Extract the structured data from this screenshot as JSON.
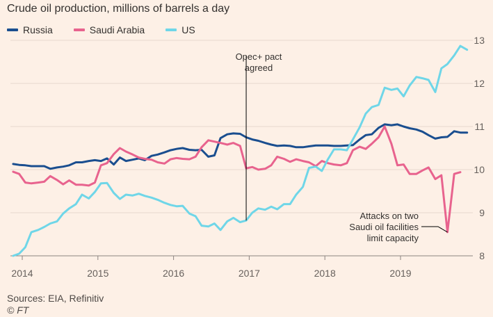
{
  "title": "Crude oil production, millions of barrels a day",
  "source": "Sources: EIA, Refinitiv",
  "credit": "© FT",
  "chart_data": {
    "type": "line",
    "title": "Crude oil production, millions of barrels a day",
    "xlabel": "",
    "ylabel": "",
    "xlim": [
      2013.88,
      2019.9
    ],
    "ylim": [
      8,
      13
    ],
    "x_ticks": [
      "2014",
      "2015",
      "2016",
      "2017",
      "2018",
      "2019"
    ],
    "y_ticks": [
      "8",
      "9",
      "10",
      "11",
      "12",
      "13"
    ],
    "y_axis_side": "right",
    "grid": "horizontal",
    "legend": "top-left",
    "series": [
      {
        "name": "Russia",
        "color": "#1a4e8f",
        "points": [
          [
            2013.88,
            10.13
          ],
          [
            2013.96,
            10.11
          ],
          [
            2014.04,
            10.1
          ],
          [
            2014.12,
            10.08
          ],
          [
            2014.21,
            10.08
          ],
          [
            2014.29,
            10.08
          ],
          [
            2014.37,
            10.02
          ],
          [
            2014.46,
            10.05
          ],
          [
            2014.54,
            10.07
          ],
          [
            2014.62,
            10.1
          ],
          [
            2014.71,
            10.17
          ],
          [
            2014.79,
            10.17
          ],
          [
            2014.88,
            10.2
          ],
          [
            2014.96,
            10.22
          ],
          [
            2015.04,
            10.2
          ],
          [
            2015.12,
            10.26
          ],
          [
            2015.21,
            10.12
          ],
          [
            2015.29,
            10.28
          ],
          [
            2015.37,
            10.2
          ],
          [
            2015.46,
            10.23
          ],
          [
            2015.54,
            10.26
          ],
          [
            2015.62,
            10.22
          ],
          [
            2015.71,
            10.32
          ],
          [
            2015.79,
            10.35
          ],
          [
            2015.88,
            10.4
          ],
          [
            2015.96,
            10.45
          ],
          [
            2016.04,
            10.48
          ],
          [
            2016.12,
            10.5
          ],
          [
            2016.21,
            10.46
          ],
          [
            2016.29,
            10.45
          ],
          [
            2016.37,
            10.46
          ],
          [
            2016.46,
            10.3
          ],
          [
            2016.54,
            10.33
          ],
          [
            2016.62,
            10.73
          ],
          [
            2016.71,
            10.82
          ],
          [
            2016.79,
            10.84
          ],
          [
            2016.88,
            10.83
          ],
          [
            2016.96,
            10.75
          ],
          [
            2017.04,
            10.7
          ],
          [
            2017.12,
            10.67
          ],
          [
            2017.21,
            10.62
          ],
          [
            2017.29,
            10.58
          ],
          [
            2017.37,
            10.55
          ],
          [
            2017.46,
            10.56
          ],
          [
            2017.54,
            10.55
          ],
          [
            2017.62,
            10.52
          ],
          [
            2017.71,
            10.52
          ],
          [
            2017.79,
            10.54
          ],
          [
            2017.88,
            10.56
          ],
          [
            2017.96,
            10.56
          ],
          [
            2018.04,
            10.56
          ],
          [
            2018.12,
            10.55
          ],
          [
            2018.21,
            10.55
          ],
          [
            2018.29,
            10.56
          ],
          [
            2018.37,
            10.57
          ],
          [
            2018.46,
            10.7
          ],
          [
            2018.54,
            10.8
          ],
          [
            2018.62,
            10.82
          ],
          [
            2018.71,
            10.97
          ],
          [
            2018.79,
            11.05
          ],
          [
            2018.88,
            11.03
          ],
          [
            2018.96,
            11.05
          ],
          [
            2019.04,
            11.0
          ],
          [
            2019.12,
            10.96
          ],
          [
            2019.21,
            10.93
          ],
          [
            2019.29,
            10.88
          ],
          [
            2019.37,
            10.8
          ],
          [
            2019.46,
            10.72
          ],
          [
            2019.54,
            10.75
          ],
          [
            2019.62,
            10.76
          ],
          [
            2019.71,
            10.89
          ],
          [
            2019.79,
            10.86
          ],
          [
            2019.88,
            10.86
          ]
        ]
      },
      {
        "name": "Saudi Arabia",
        "color": "#e8638e",
        "points": [
          [
            2013.88,
            9.95
          ],
          [
            2013.96,
            9.9
          ],
          [
            2014.04,
            9.7
          ],
          [
            2014.12,
            9.68
          ],
          [
            2014.21,
            9.7
          ],
          [
            2014.29,
            9.72
          ],
          [
            2014.37,
            9.85
          ],
          [
            2014.46,
            9.76
          ],
          [
            2014.54,
            9.66
          ],
          [
            2014.62,
            9.75
          ],
          [
            2014.71,
            9.65
          ],
          [
            2014.79,
            9.65
          ],
          [
            2014.88,
            9.63
          ],
          [
            2014.96,
            9.7
          ],
          [
            2015.04,
            10.1
          ],
          [
            2015.12,
            10.15
          ],
          [
            2015.21,
            10.36
          ],
          [
            2015.29,
            10.5
          ],
          [
            2015.37,
            10.42
          ],
          [
            2015.46,
            10.35
          ],
          [
            2015.54,
            10.28
          ],
          [
            2015.62,
            10.25
          ],
          [
            2015.71,
            10.23
          ],
          [
            2015.79,
            10.17
          ],
          [
            2015.88,
            10.14
          ],
          [
            2015.96,
            10.24
          ],
          [
            2016.04,
            10.27
          ],
          [
            2016.12,
            10.25
          ],
          [
            2016.21,
            10.24
          ],
          [
            2016.29,
            10.3
          ],
          [
            2016.37,
            10.52
          ],
          [
            2016.46,
            10.68
          ],
          [
            2016.54,
            10.65
          ],
          [
            2016.62,
            10.62
          ],
          [
            2016.71,
            10.58
          ],
          [
            2016.79,
            10.62
          ],
          [
            2016.88,
            10.55
          ],
          [
            2016.96,
            10.03
          ],
          [
            2017.04,
            10.06
          ],
          [
            2017.12,
            10.0
          ],
          [
            2017.21,
            10.02
          ],
          [
            2017.29,
            10.1
          ],
          [
            2017.37,
            10.3
          ],
          [
            2017.46,
            10.25
          ],
          [
            2017.54,
            10.18
          ],
          [
            2017.62,
            10.24
          ],
          [
            2017.71,
            10.2
          ],
          [
            2017.79,
            10.17
          ],
          [
            2017.88,
            10.08
          ],
          [
            2017.96,
            10.2
          ],
          [
            2018.04,
            10.15
          ],
          [
            2018.12,
            10.12
          ],
          [
            2018.21,
            10.1
          ],
          [
            2018.29,
            10.15
          ],
          [
            2018.37,
            10.45
          ],
          [
            2018.46,
            10.53
          ],
          [
            2018.54,
            10.48
          ],
          [
            2018.62,
            10.6
          ],
          [
            2018.71,
            10.75
          ],
          [
            2018.79,
            11.0
          ],
          [
            2018.88,
            10.6
          ],
          [
            2018.96,
            10.1
          ],
          [
            2019.04,
            10.12
          ],
          [
            2019.12,
            9.9
          ],
          [
            2019.21,
            9.9
          ],
          [
            2019.29,
            9.98
          ],
          [
            2019.37,
            10.05
          ],
          [
            2019.46,
            9.78
          ],
          [
            2019.54,
            9.87
          ],
          [
            2019.62,
            8.55
          ],
          [
            2019.71,
            9.9
          ],
          [
            2019.79,
            9.94
          ]
        ]
      },
      {
        "name": "US",
        "color": "#6fd6e8",
        "points": [
          [
            2013.88,
            8.0
          ],
          [
            2013.96,
            8.05
          ],
          [
            2014.04,
            8.2
          ],
          [
            2014.12,
            8.55
          ],
          [
            2014.21,
            8.6
          ],
          [
            2014.29,
            8.67
          ],
          [
            2014.37,
            8.75
          ],
          [
            2014.46,
            8.8
          ],
          [
            2014.54,
            8.98
          ],
          [
            2014.62,
            9.1
          ],
          [
            2014.71,
            9.2
          ],
          [
            2014.79,
            9.42
          ],
          [
            2014.88,
            9.33
          ],
          [
            2014.96,
            9.48
          ],
          [
            2015.04,
            9.68
          ],
          [
            2015.12,
            9.69
          ],
          [
            2015.21,
            9.46
          ],
          [
            2015.29,
            9.32
          ],
          [
            2015.37,
            9.42
          ],
          [
            2015.46,
            9.4
          ],
          [
            2015.54,
            9.44
          ],
          [
            2015.62,
            9.39
          ],
          [
            2015.71,
            9.35
          ],
          [
            2015.79,
            9.3
          ],
          [
            2015.88,
            9.23
          ],
          [
            2015.96,
            9.18
          ],
          [
            2016.04,
            9.15
          ],
          [
            2016.12,
            9.16
          ],
          [
            2016.21,
            8.98
          ],
          [
            2016.29,
            8.92
          ],
          [
            2016.37,
            8.7
          ],
          [
            2016.46,
            8.68
          ],
          [
            2016.54,
            8.75
          ],
          [
            2016.62,
            8.6
          ],
          [
            2016.71,
            8.8
          ],
          [
            2016.79,
            8.88
          ],
          [
            2016.88,
            8.78
          ],
          [
            2016.96,
            8.82
          ],
          [
            2017.04,
            9.0
          ],
          [
            2017.12,
            9.1
          ],
          [
            2017.21,
            9.07
          ],
          [
            2017.29,
            9.14
          ],
          [
            2017.37,
            9.08
          ],
          [
            2017.46,
            9.2
          ],
          [
            2017.54,
            9.2
          ],
          [
            2017.62,
            9.42
          ],
          [
            2017.71,
            9.6
          ],
          [
            2017.79,
            10.04
          ],
          [
            2017.88,
            10.07
          ],
          [
            2017.96,
            9.97
          ],
          [
            2018.04,
            10.24
          ],
          [
            2018.12,
            10.47
          ],
          [
            2018.21,
            10.47
          ],
          [
            2018.29,
            10.45
          ],
          [
            2018.37,
            10.7
          ],
          [
            2018.46,
            10.98
          ],
          [
            2018.54,
            11.3
          ],
          [
            2018.62,
            11.45
          ],
          [
            2018.71,
            11.5
          ],
          [
            2018.79,
            11.9
          ],
          [
            2018.88,
            11.85
          ],
          [
            2018.96,
            11.88
          ],
          [
            2019.04,
            11.7
          ],
          [
            2019.12,
            11.95
          ],
          [
            2019.21,
            12.15
          ],
          [
            2019.29,
            12.12
          ],
          [
            2019.37,
            12.08
          ],
          [
            2019.46,
            11.8
          ],
          [
            2019.54,
            12.35
          ],
          [
            2019.62,
            12.45
          ],
          [
            2019.71,
            12.65
          ],
          [
            2019.79,
            12.87
          ],
          [
            2019.88,
            12.78
          ]
        ]
      }
    ],
    "annotations": [
      {
        "lines": [
          "Opec+ pact",
          "agreed"
        ],
        "x": 2016.96,
        "y": 8.82
      },
      {
        "lines": [
          "Attacks on two",
          "Saudi oil facilities",
          "limit capacity"
        ],
        "x": 2019.62,
        "y": 8.55
      }
    ]
  }
}
